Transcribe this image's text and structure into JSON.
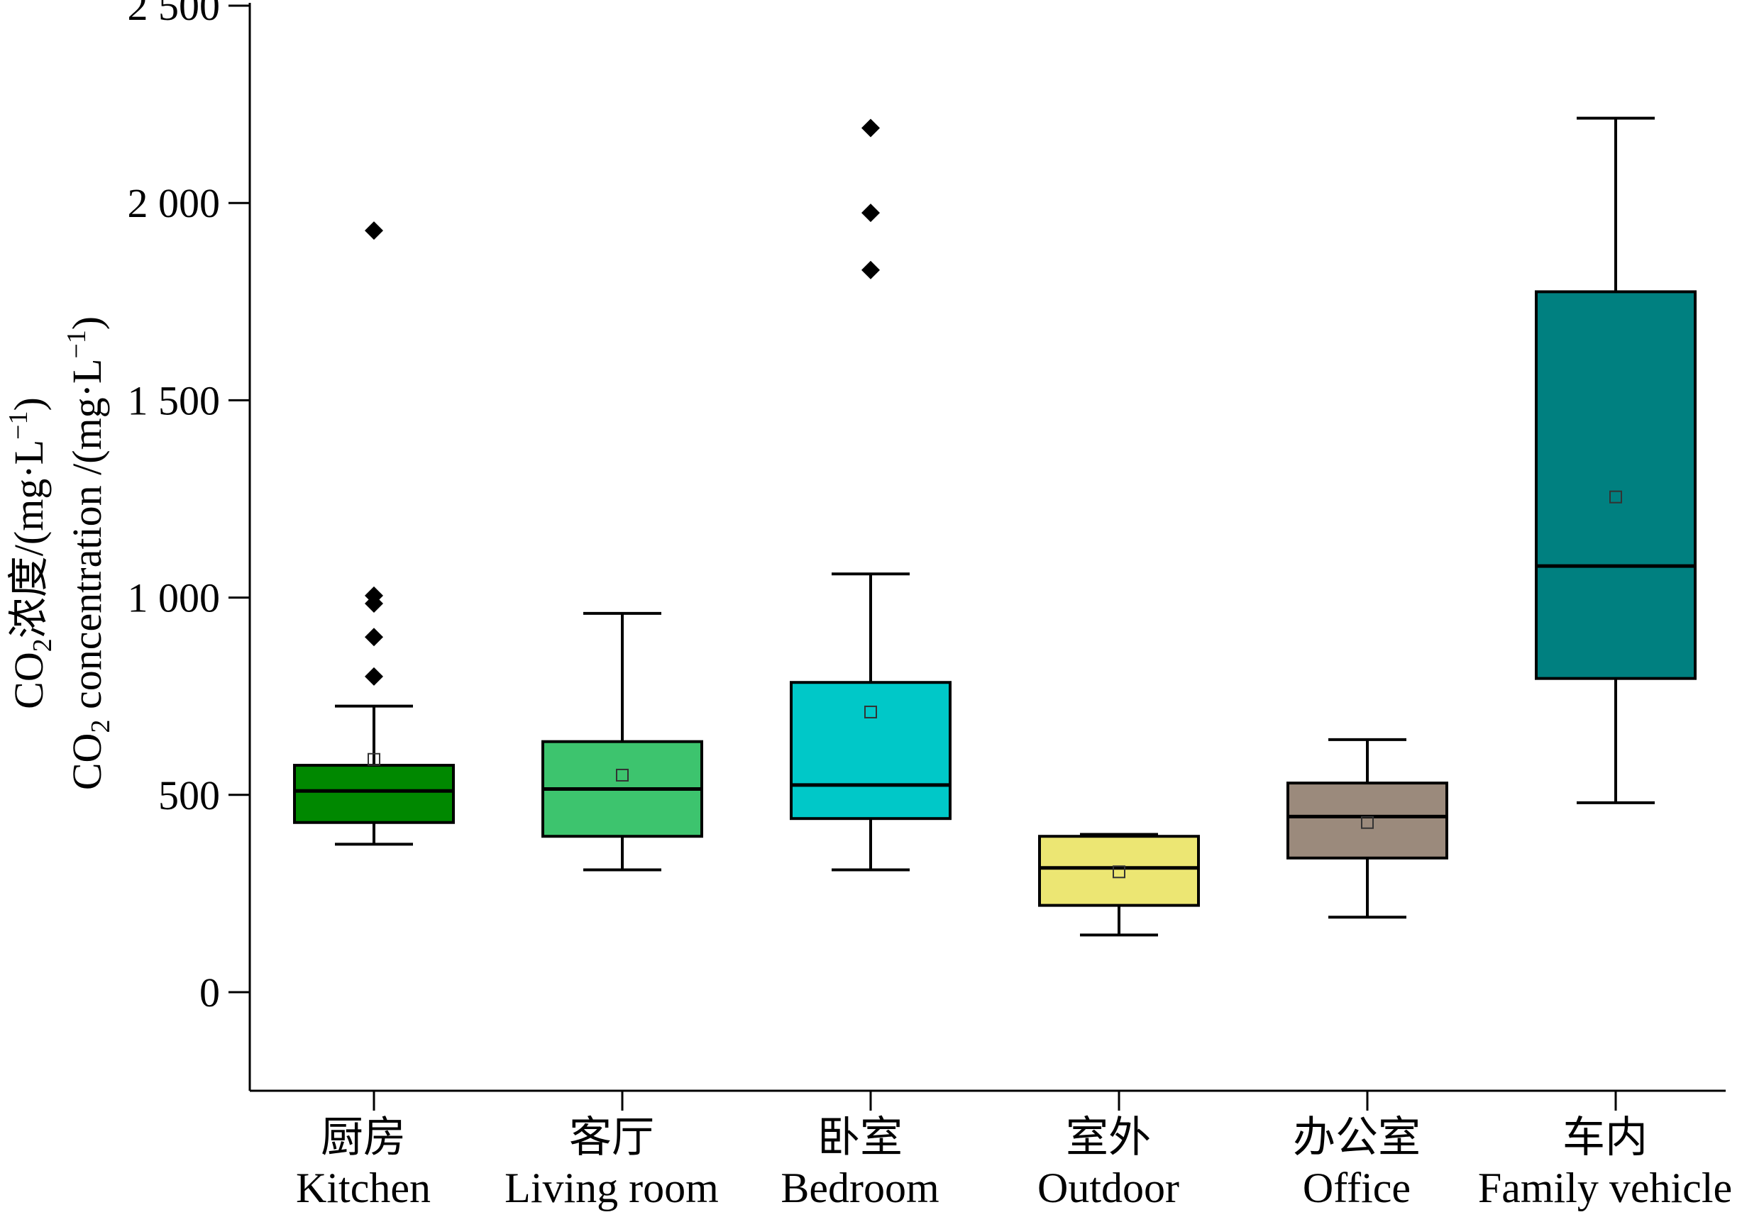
{
  "chart_data": {
    "type": "box",
    "ylabel_lines": [
      {
        "pre": "CO",
        "sub": "2",
        "text": "浓度/(mg·L",
        "sup": "−1",
        "post": ")"
      },
      {
        "pre": "CO",
        "sub": "2",
        "text": " concentration /(mg·L",
        "sup": "−1",
        "post": ")"
      }
    ],
    "ylim": [
      -250,
      2500
    ],
    "yticks": [
      0,
      500,
      1000,
      1500,
      2000,
      2500
    ],
    "ytick_labels": [
      "0",
      "500",
      "1 000",
      "1 500",
      "2 000",
      "2 500"
    ],
    "categories": [
      {
        "zh": "厨房",
        "en": "Kitchen"
      },
      {
        "zh": "客厅",
        "en": "Living room"
      },
      {
        "zh": "卧室",
        "en": "Bedroom"
      },
      {
        "zh": "室外",
        "en": "Outdoor"
      },
      {
        "zh": "办公室",
        "en": "Office"
      },
      {
        "zh": "车内",
        "en": "Family vehicle"
      }
    ],
    "boxes": [
      {
        "min": 375,
        "q1": 430,
        "median": 510,
        "q3": 575,
        "max": 725,
        "mean": 590,
        "outliers": [
          1930,
          1005,
          985,
          900,
          800
        ],
        "color": "#008800"
      },
      {
        "min": 310,
        "q1": 395,
        "median": 515,
        "q3": 635,
        "max": 960,
        "mean": 550,
        "outliers": [],
        "color": "#3dc46e"
      },
      {
        "min": 310,
        "q1": 440,
        "median": 525,
        "q3": 785,
        "max": 1060,
        "mean": 710,
        "outliers": [
          2190,
          1975,
          1830
        ],
        "color": "#00c8c8"
      },
      {
        "min": 145,
        "q1": 220,
        "median": 315,
        "q3": 395,
        "max": 400,
        "mean": 305,
        "outliers": [],
        "color": "#ece673"
      },
      {
        "min": 190,
        "q1": 340,
        "median": 445,
        "q3": 530,
        "max": 640,
        "mean": 430,
        "outliers": [],
        "color": "#9b8a7c"
      },
      {
        "min": 480,
        "q1": 795,
        "median": 1080,
        "q3": 1775,
        "max": 2215,
        "mean": 1255,
        "outliers": [],
        "color": "#008080"
      }
    ]
  }
}
